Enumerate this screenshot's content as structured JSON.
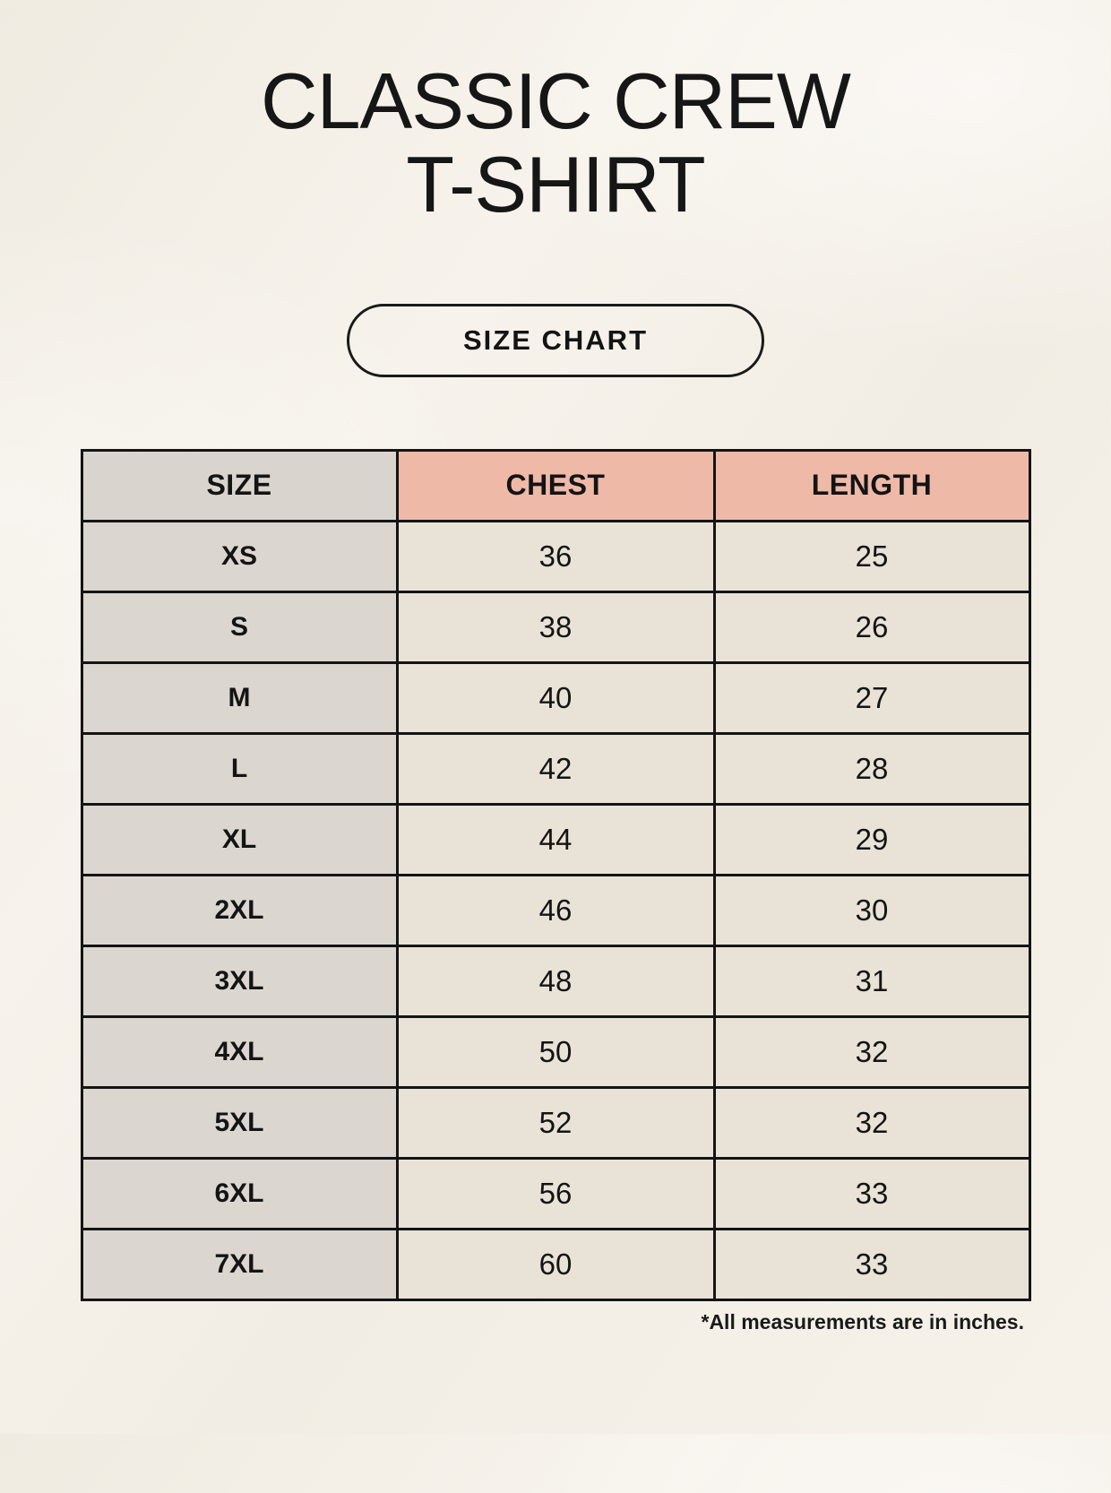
{
  "header": {
    "title_line1": "CLASSIC CREW",
    "title_line2": "T-SHIRT",
    "button_label": "SIZE CHART"
  },
  "chart_data": {
    "type": "table",
    "title": "CLASSIC CREW T-SHIRT",
    "columns": [
      "SIZE",
      "CHEST",
      "LENGTH"
    ],
    "rows": [
      [
        "XS",
        "36",
        "25"
      ],
      [
        "S",
        "38",
        "26"
      ],
      [
        "M",
        "40",
        "27"
      ],
      [
        "L",
        "42",
        "28"
      ],
      [
        "XL",
        "44",
        "29"
      ],
      [
        "2XL",
        "46",
        "30"
      ],
      [
        "3XL",
        "48",
        "31"
      ],
      [
        "4XL",
        "50",
        "32"
      ],
      [
        "5XL",
        "52",
        "32"
      ],
      [
        "6XL",
        "56",
        "33"
      ],
      [
        "7XL",
        "60",
        "33"
      ]
    ],
    "units": "inches",
    "footnote": "*All measurements are in inches.",
    "layout": "3-column size chart, header row accented"
  },
  "colors": {
    "background": "#f5f1e9",
    "header_accent": "#efb9a8",
    "size_column": "#dcd6d0",
    "data_cell": "#e9e2d7",
    "border": "#141414",
    "text": "#141414"
  }
}
